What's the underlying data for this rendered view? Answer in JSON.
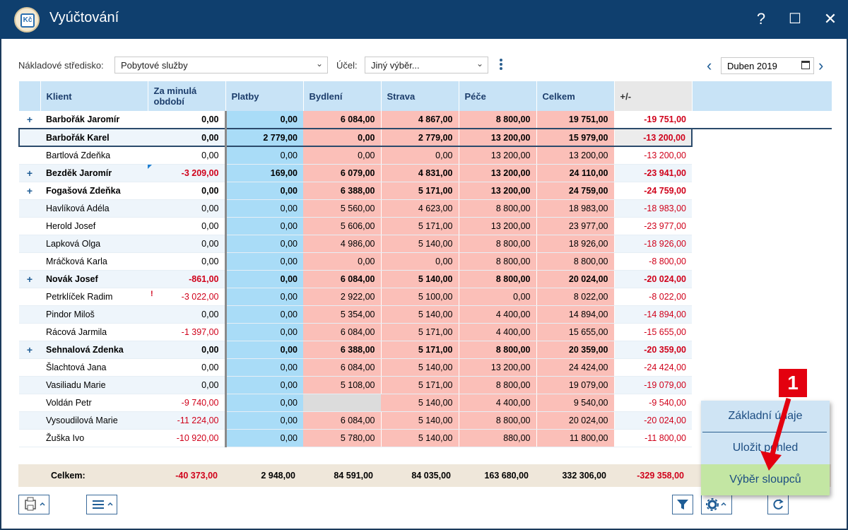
{
  "window": {
    "title": "Vyúčtování",
    "icon_text": "Kč",
    "help": "?",
    "maximize": "☐",
    "close": "✕"
  },
  "filters": {
    "center_label": "Nákladové středisko:",
    "center_value": "Pobytové služby",
    "purpose_label": "Účel:",
    "purpose_value": "Jiný výběr...",
    "period_value": "Duben 2019"
  },
  "table": {
    "headers": [
      "Klient",
      "Za minulá období",
      "Platby",
      "Bydlení",
      "Strava",
      "Péče",
      "Celkem",
      "+/-"
    ],
    "rows": [
      {
        "name": "Barbořák Jaromír",
        "prev": "0,00",
        "plat": "0,00",
        "byd": "6 084,00",
        "str": "4 867,00",
        "pece": "8 800,00",
        "celk": "19 751,00",
        "pm": "-19 751,00",
        "group": true
      },
      {
        "name": "Barbořák Karel",
        "prev": "0,00",
        "plat": "2 779,00",
        "byd": "0,00",
        "str": "2 779,00",
        "pece": "13 200,00",
        "celk": "15 979,00",
        "pm": "-13 200,00",
        "selected": true
      },
      {
        "name": "Bartlová Zdeňka",
        "prev": "0,00",
        "plat": "0,00",
        "byd": "0,00",
        "str": "0,00",
        "pece": "13 200,00",
        "celk": "13 200,00",
        "pm": "-13 200,00"
      },
      {
        "name": "Bezděk Jaromír",
        "prev": "-3 209,00",
        "plat": "169,00",
        "byd": "6 079,00",
        "str": "4 831,00",
        "pece": "13 200,00",
        "celk": "24 110,00",
        "pm": "-23 941,00",
        "group": true,
        "flag": true
      },
      {
        "name": "Fogašová Zdeňka",
        "prev": "0,00",
        "plat": "0,00",
        "byd": "6 388,00",
        "str": "5 171,00",
        "pece": "13 200,00",
        "celk": "24 759,00",
        "pm": "-24 759,00",
        "group": true
      },
      {
        "name": "Havlíková Adéla",
        "prev": "0,00",
        "plat": "0,00",
        "byd": "5 560,00",
        "str": "4 623,00",
        "pece": "8 800,00",
        "celk": "18 983,00",
        "pm": "-18 983,00"
      },
      {
        "name": "Herold Josef",
        "prev": "0,00",
        "plat": "0,00",
        "byd": "5 606,00",
        "str": "5 171,00",
        "pece": "13 200,00",
        "celk": "23 977,00",
        "pm": "-23 977,00"
      },
      {
        "name": "Lapková Olga",
        "prev": "0,00",
        "plat": "0,00",
        "byd": "4 986,00",
        "str": "5 140,00",
        "pece": "8 800,00",
        "celk": "18 926,00",
        "pm": "-18 926,00"
      },
      {
        "name": "Mráčková Karla",
        "prev": "0,00",
        "plat": "0,00",
        "byd": "0,00",
        "str": "0,00",
        "pece": "8 800,00",
        "celk": "8 800,00",
        "pm": "-8 800,00"
      },
      {
        "name": "Novák Josef",
        "prev": "-861,00",
        "plat": "0,00",
        "byd": "6 084,00",
        "str": "5 140,00",
        "pece": "8 800,00",
        "celk": "20 024,00",
        "pm": "-20 024,00",
        "group": true
      },
      {
        "name": "Petrklíček Radim",
        "prev": "-3 022,00",
        "plat": "0,00",
        "byd": "2 922,00",
        "str": "5 100,00",
        "pece": "0,00",
        "celk": "8 022,00",
        "pm": "-8 022,00",
        "excl": true
      },
      {
        "name": "Pindor Miloš",
        "prev": "0,00",
        "plat": "0,00",
        "byd": "5 354,00",
        "str": "5 140,00",
        "pece": "4 400,00",
        "celk": "14 894,00",
        "pm": "-14 894,00"
      },
      {
        "name": "Rácová Jarmila",
        "prev": "-1 397,00",
        "plat": "0,00",
        "byd": "6 084,00",
        "str": "5 171,00",
        "pece": "4 400,00",
        "celk": "15 655,00",
        "pm": "-15 655,00"
      },
      {
        "name": "Sehnalová Zdenka",
        "prev": "0,00",
        "plat": "0,00",
        "byd": "6 388,00",
        "str": "5 171,00",
        "pece": "8 800,00",
        "celk": "20 359,00",
        "pm": "-20 359,00",
        "group": true
      },
      {
        "name": "Šlachtová Jana",
        "prev": "0,00",
        "plat": "0,00",
        "byd": "6 084,00",
        "str": "5 140,00",
        "pece": "13 200,00",
        "celk": "24 424,00",
        "pm": "-24 424,00"
      },
      {
        "name": "Vasiliadu Marie",
        "prev": "0,00",
        "plat": "0,00",
        "byd": "5 108,00",
        "str": "5 171,00",
        "pece": "8 800,00",
        "celk": "19 079,00",
        "pm": "-19 079,00"
      },
      {
        "name": "Voldán Petr",
        "prev": "-9 740,00",
        "plat": "0,00",
        "byd": "",
        "str": "5 140,00",
        "pece": "4 400,00",
        "celk": "9 540,00",
        "pm": "-9 540,00",
        "bydGray": true
      },
      {
        "name": "Vysoudilová Marie",
        "prev": "-11 224,00",
        "plat": "0,00",
        "byd": "6 084,00",
        "str": "5 140,00",
        "pece": "8 800,00",
        "celk": "20 024,00",
        "pm": "-20 024,00"
      },
      {
        "name": "Žuška Ivo",
        "prev": "-10 920,00",
        "plat": "0,00",
        "byd": "5 780,00",
        "str": "5 140,00",
        "pece": "880,00",
        "celk": "11 800,00",
        "pm": "-11 800,00"
      }
    ]
  },
  "totals": {
    "label": "Celkem:",
    "prev": "-40 373,00",
    "plat": "2 948,00",
    "byd": "84 591,00",
    "str": "84 035,00",
    "pece": "163 680,00",
    "celk": "332 306,00",
    "pm": "-329 358,00"
  },
  "menu": {
    "items": [
      "Základní údaje",
      "Uložit pohled",
      "Výběr sloupců"
    ]
  },
  "annotation": {
    "badge": "1"
  },
  "colors": {
    "titlebar": "#0f3f6e",
    "payments": "#a9dcf7",
    "costs": "#fbbfb8",
    "negative": "#d0021b",
    "menu_active": "#c3e6a3"
  }
}
